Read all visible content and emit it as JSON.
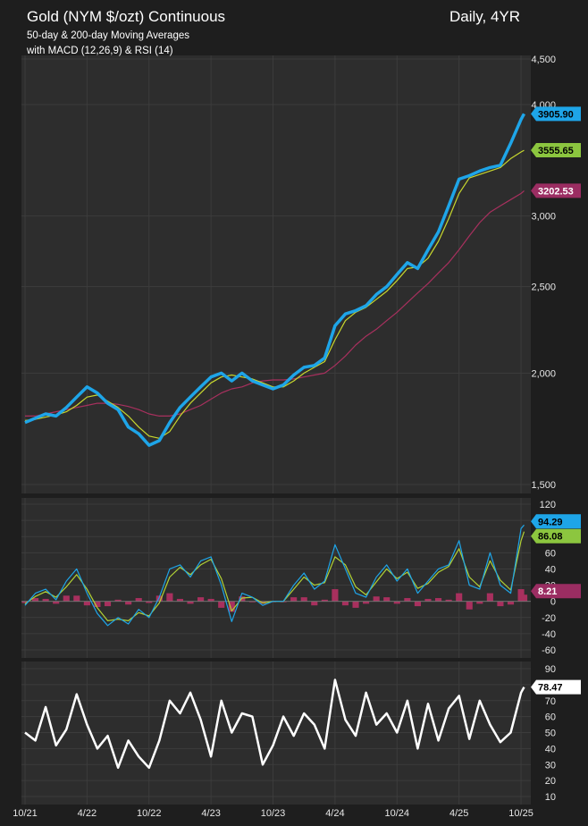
{
  "header": {
    "title": "Gold (NYM $/ozt) Continuous",
    "period": "Daily, 4YR",
    "subtitle_1": "50-day & 200-day Moving Averages",
    "subtitle_2": "with MACD (12,26,9) & RSI (14)"
  },
  "colors": {
    "background": "#1e1e1e",
    "panel": "#2d2d2d",
    "grid": "#3c3c3c",
    "price": "#1ea5e8",
    "ma50": "#c8d82e",
    "ma200": "#a8305e",
    "macd_line": "#1ea5e8",
    "signal_line": "#b2d235",
    "histogram": "#a8305e",
    "rsi": "#ffffff",
    "tag_price": "#1ea5e8",
    "tag_ma50": "#8cc63f",
    "tag_ma200": "#9b2d62",
    "tag_rsi": "#ffffff"
  },
  "chart_data": [
    {
      "type": "line",
      "panel": "price",
      "scale": "log",
      "ylim": [
        1500,
        4500
      ],
      "yticks": [
        "1,500",
        "2,000",
        "2,500",
        "3,000",
        "4,000",
        "4,500"
      ],
      "ytick_values": [
        1500,
        2000,
        2500,
        3000,
        4000,
        4500
      ],
      "x_range": [
        "2021-10",
        "2025-10"
      ],
      "xticks": [
        "10/21",
        "4/22",
        "10/22",
        "4/23",
        "10/23",
        "4/24",
        "10/24",
        "4/25",
        "10/25"
      ],
      "series": [
        {
          "key": "price",
          "t": [
            0,
            1,
            2,
            3,
            4,
            5,
            6,
            7,
            8,
            9,
            10,
            11,
            12,
            13,
            14,
            15,
            16,
            17,
            18,
            19,
            20,
            21,
            22,
            23,
            24,
            25,
            26,
            27,
            28,
            29,
            30,
            31,
            32,
            33,
            34,
            35,
            36,
            37,
            38,
            39,
            40,
            41,
            42,
            43,
            44,
            45,
            46,
            47,
            48,
            48.3
          ],
          "values": [
            1760,
            1780,
            1800,
            1790,
            1830,
            1880,
            1930,
            1900,
            1850,
            1820,
            1740,
            1710,
            1660,
            1680,
            1760,
            1830,
            1880,
            1930,
            1980,
            2000,
            1960,
            2000,
            1960,
            1940,
            1920,
            1940,
            1990,
            2030,
            2040,
            2080,
            2260,
            2330,
            2350,
            2380,
            2450,
            2500,
            2580,
            2660,
            2620,
            2750,
            2880,
            3080,
            3300,
            3330,
            3370,
            3400,
            3420,
            3620,
            3850,
            3905.9
          ]
        },
        {
          "key": "ma50",
          "t": [
            0,
            1,
            2,
            3,
            4,
            5,
            6,
            7,
            8,
            9,
            10,
            11,
            12,
            13,
            14,
            15,
            16,
            17,
            18,
            19,
            20,
            21,
            22,
            23,
            24,
            25,
            26,
            27,
            28,
            29,
            30,
            31,
            32,
            33,
            34,
            35,
            36,
            37,
            38,
            39,
            40,
            41,
            42,
            43,
            44,
            45,
            46,
            47,
            48,
            48.3
          ],
          "values": [
            1770,
            1775,
            1785,
            1795,
            1810,
            1840,
            1880,
            1890,
            1860,
            1830,
            1790,
            1740,
            1700,
            1690,
            1720,
            1790,
            1850,
            1900,
            1950,
            1980,
            1990,
            1980,
            1970,
            1950,
            1930,
            1930,
            1960,
            2000,
            2030,
            2060,
            2180,
            2290,
            2340,
            2370,
            2420,
            2470,
            2540,
            2620,
            2630,
            2690,
            2810,
            2980,
            3180,
            3310,
            3340,
            3370,
            3400,
            3480,
            3540,
            3555.65
          ]
        },
        {
          "key": "ma200",
          "t": [
            0,
            1,
            2,
            3,
            4,
            5,
            6,
            7,
            8,
            9,
            10,
            11,
            12,
            13,
            14,
            15,
            16,
            17,
            18,
            19,
            20,
            21,
            22,
            23,
            24,
            25,
            26,
            27,
            28,
            29,
            30,
            31,
            32,
            33,
            34,
            35,
            36,
            37,
            38,
            39,
            40,
            41,
            42,
            43,
            44,
            45,
            46,
            47,
            48,
            48.3
          ],
          "values": [
            1790,
            1790,
            1800,
            1810,
            1820,
            1830,
            1840,
            1850,
            1850,
            1845,
            1835,
            1820,
            1800,
            1790,
            1790,
            1800,
            1820,
            1840,
            1870,
            1900,
            1920,
            1930,
            1950,
            1960,
            1965,
            1965,
            1970,
            1980,
            1990,
            2000,
            2040,
            2090,
            2150,
            2200,
            2240,
            2290,
            2340,
            2400,
            2460,
            2520,
            2590,
            2660,
            2750,
            2850,
            2950,
            3030,
            3080,
            3130,
            3180,
            3202.53
          ]
        }
      ],
      "last_values": {
        "price": "3905.90",
        "ma50": "3555.65",
        "ma200": "3202.53"
      }
    },
    {
      "type": "line",
      "panel": "macd",
      "ylim": [
        -60,
        120
      ],
      "yticks": [
        "120",
        "100",
        "80",
        "60",
        "40",
        "20",
        "0",
        "-20",
        "-40",
        "-60"
      ],
      "ytick_values": [
        120,
        100,
        80,
        60,
        40,
        20,
        0,
        -20,
        -40,
        -60
      ],
      "series": [
        {
          "key": "macd_line",
          "t": [
            0,
            1,
            2,
            3,
            4,
            5,
            6,
            7,
            8,
            9,
            10,
            11,
            12,
            13,
            14,
            15,
            16,
            17,
            18,
            19,
            20,
            21,
            22,
            23,
            24,
            25,
            26,
            27,
            28,
            29,
            30,
            31,
            32,
            33,
            34,
            35,
            36,
            37,
            38,
            39,
            40,
            41,
            42,
            43,
            44,
            45,
            46,
            47,
            48,
            48.3
          ],
          "values": [
            -5,
            10,
            15,
            2,
            25,
            40,
            10,
            -15,
            -30,
            -20,
            -28,
            -10,
            -20,
            5,
            40,
            45,
            30,
            50,
            55,
            20,
            -25,
            10,
            5,
            -5,
            0,
            0,
            20,
            35,
            15,
            25,
            70,
            40,
            10,
            5,
            30,
            45,
            25,
            40,
            10,
            25,
            40,
            45,
            75,
            20,
            15,
            60,
            20,
            10,
            90,
            94.29
          ]
        },
        {
          "key": "signal_line",
          "t": [
            0,
            1,
            2,
            3,
            4,
            5,
            6,
            7,
            8,
            9,
            10,
            11,
            12,
            13,
            14,
            15,
            16,
            17,
            18,
            19,
            20,
            21,
            22,
            23,
            24,
            25,
            26,
            27,
            28,
            29,
            30,
            31,
            32,
            33,
            34,
            35,
            36,
            37,
            38,
            39,
            40,
            41,
            42,
            43,
            44,
            45,
            46,
            47,
            48,
            48.3
          ],
          "values": [
            -3,
            6,
            12,
            5,
            18,
            33,
            15,
            -8,
            -24,
            -22,
            -24,
            -14,
            -18,
            -2,
            30,
            42,
            33,
            45,
            52,
            28,
            -12,
            4,
            5,
            -2,
            0,
            0,
            15,
            30,
            20,
            23,
            55,
            45,
            18,
            8,
            24,
            40,
            28,
            36,
            16,
            22,
            36,
            43,
            65,
            30,
            18,
            50,
            26,
            14,
            75,
            86.08
          ]
        }
      ],
      "histogram": {
        "t": [
          0,
          1,
          2,
          3,
          4,
          5,
          6,
          7,
          8,
          9,
          10,
          11,
          12,
          13,
          14,
          15,
          16,
          17,
          18,
          19,
          20,
          21,
          22,
          23,
          24,
          25,
          26,
          27,
          28,
          29,
          30,
          31,
          32,
          33,
          34,
          35,
          36,
          37,
          38,
          39,
          40,
          41,
          42,
          43,
          44,
          45,
          46,
          47,
          48,
          48.3
        ],
        "values": [
          -2,
          4,
          3,
          -3,
          7,
          7,
          -5,
          -7,
          -6,
          2,
          -4,
          4,
          -2,
          7,
          10,
          3,
          -3,
          5,
          3,
          -8,
          -13,
          6,
          0,
          -3,
          0,
          0,
          5,
          5,
          -5,
          2,
          15,
          -5,
          -8,
          -3,
          6,
          5,
          -3,
          4,
          -6,
          3,
          4,
          2,
          10,
          -10,
          -3,
          10,
          -6,
          -4,
          15,
          8.21
        ]
      },
      "last_values": {
        "macd_line": "94.29",
        "signal_line": "86.08",
        "histogram": "8.21"
      }
    },
    {
      "type": "line",
      "panel": "rsi",
      "ylim": [
        10,
        90
      ],
      "yticks": [
        "90",
        "80",
        "70",
        "60",
        "50",
        "40",
        "30",
        "20",
        "10"
      ],
      "ytick_values": [
        90,
        80,
        70,
        60,
        50,
        40,
        30,
        20,
        10
      ],
      "series": [
        {
          "key": "rsi",
          "t": [
            0,
            1,
            2,
            3,
            4,
            5,
            6,
            7,
            8,
            9,
            10,
            11,
            12,
            13,
            14,
            15,
            16,
            17,
            18,
            19,
            20,
            21,
            22,
            23,
            24,
            25,
            26,
            27,
            28,
            29,
            30,
            31,
            32,
            33,
            34,
            35,
            36,
            37,
            38,
            39,
            40,
            41,
            42,
            43,
            44,
            45,
            46,
            47,
            48,
            48.3
          ],
          "values": [
            50,
            45,
            66,
            42,
            52,
            74,
            55,
            40,
            48,
            28,
            45,
            35,
            28,
            45,
            70,
            62,
            75,
            58,
            35,
            70,
            50,
            62,
            60,
            30,
            42,
            60,
            48,
            62,
            55,
            40,
            83,
            58,
            48,
            75,
            55,
            62,
            50,
            70,
            40,
            68,
            45,
            65,
            73,
            46,
            70,
            55,
            44,
            50,
            75,
            78.47
          ]
        }
      ],
      "last_values": {
        "rsi": "78.47"
      }
    }
  ]
}
